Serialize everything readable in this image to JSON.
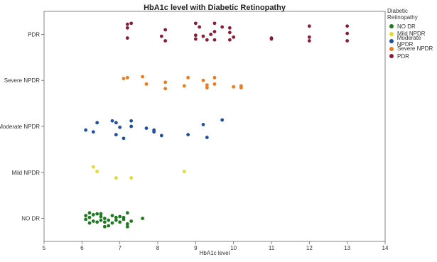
{
  "chart_data": {
    "type": "scatter",
    "title": "HbA1c level with Diabetic Retinopathy",
    "xlabel": "HbA1c level",
    "ylabel": "",
    "xlim": [
      5,
      14
    ],
    "xticks": [
      "5",
      "6",
      "7",
      "8",
      "9",
      "10",
      "11",
      "12",
      "13",
      "14"
    ],
    "categories": [
      "NO DR",
      "Mild NPDR",
      "Moderate NPDR",
      "Severe NPDR",
      "PDR"
    ],
    "legend_title": "Diabetic Retinopathy",
    "legend_position": "right",
    "grid": false,
    "series": [
      {
        "name": "NO DR",
        "color": "#1e7a1e",
        "points": [
          [
            6.1,
            -0.02
          ],
          [
            6.2,
            0.12
          ],
          [
            6.3,
            0.08
          ],
          [
            6.4,
            0.1
          ],
          [
            6.5,
            0.04
          ],
          [
            6.1,
            0.06
          ],
          [
            6.2,
            -0.1
          ],
          [
            6.3,
            -0.06
          ],
          [
            6.5,
            -0.04
          ],
          [
            6.6,
            -0.08
          ],
          [
            6.6,
            0.0
          ],
          [
            6.7,
            -0.16
          ],
          [
            6.8,
            -0.1
          ],
          [
            6.9,
            -0.04
          ],
          [
            7.0,
            -0.08
          ],
          [
            7.1,
            -0.02
          ],
          [
            7.2,
            0.12
          ],
          [
            7.3,
            -0.06
          ],
          [
            7.2,
            -0.18
          ],
          [
            7.2,
            -0.12
          ],
          [
            6.9,
            0.02
          ],
          [
            6.7,
            -0.04
          ],
          [
            6.5,
            0.1
          ],
          [
            6.6,
            -0.18
          ],
          [
            7.0,
            0.04
          ],
          [
            7.6,
            0.0
          ],
          [
            6.2,
            0.02
          ],
          [
            6.4,
            -0.08
          ],
          [
            7.1,
            0.02
          ],
          [
            6.8,
            0.06
          ]
        ]
      },
      {
        "name": "Mild NPDR",
        "color": "#e6d92e",
        "points": [
          [
            6.3,
            1.12
          ],
          [
            6.4,
            1.02
          ],
          [
            6.9,
            0.88
          ],
          [
            7.3,
            0.88
          ],
          [
            8.7,
            1.02
          ]
        ]
      },
      {
        "name": "Moderate NPDR",
        "color": "#1f4fa3",
        "points": [
          [
            6.1,
            1.92
          ],
          [
            6.3,
            1.88
          ],
          [
            6.4,
            2.08
          ],
          [
            6.8,
            2.12
          ],
          [
            6.9,
            2.08
          ],
          [
            6.9,
            1.82
          ],
          [
            7.0,
            1.98
          ],
          [
            7.1,
            1.74
          ],
          [
            7.3,
            2.12
          ],
          [
            7.3,
            2.0
          ],
          [
            7.7,
            1.96
          ],
          [
            7.9,
            1.92
          ],
          [
            7.9,
            1.88
          ],
          [
            8.1,
            1.8
          ],
          [
            8.8,
            1.82
          ],
          [
            9.2,
            2.04
          ],
          [
            9.3,
            1.76
          ],
          [
            9.7,
            2.14
          ]
        ]
      },
      {
        "name": "Severe NPDR",
        "color": "#ef7a1a",
        "points": [
          [
            7.1,
            3.04
          ],
          [
            7.2,
            3.06
          ],
          [
            7.6,
            3.08
          ],
          [
            7.7,
            2.92
          ],
          [
            8.2,
            2.96
          ],
          [
            8.2,
            2.82
          ],
          [
            8.7,
            2.88
          ],
          [
            8.8,
            3.06
          ],
          [
            9.2,
            3.0
          ],
          [
            9.3,
            2.84
          ],
          [
            9.3,
            2.9
          ],
          [
            9.5,
            3.06
          ],
          [
            9.5,
            2.92
          ],
          [
            10.0,
            2.86
          ],
          [
            10.2,
            2.88
          ],
          [
            10.2,
            2.84
          ]
        ]
      },
      {
        "name": "PDR",
        "color": "#8c1c35",
        "points": [
          [
            7.2,
            4.22
          ],
          [
            7.3,
            4.24
          ],
          [
            7.2,
            4.14
          ],
          [
            7.2,
            3.92
          ],
          [
            8.1,
            3.96
          ],
          [
            8.2,
            4.1
          ],
          [
            8.2,
            3.86
          ],
          [
            9.0,
            4.24
          ],
          [
            9.1,
            4.16
          ],
          [
            9.0,
            3.98
          ],
          [
            9.2,
            3.96
          ],
          [
            9.3,
            3.88
          ],
          [
            9.0,
            3.9
          ],
          [
            9.5,
            4.24
          ],
          [
            9.5,
            4.06
          ],
          [
            9.5,
            3.88
          ],
          [
            9.4,
            4.0
          ],
          [
            9.7,
            4.16
          ],
          [
            9.9,
            4.14
          ],
          [
            9.9,
            4.04
          ],
          [
            10.0,
            3.94
          ],
          [
            9.9,
            3.88
          ],
          [
            11.0,
            3.92
          ],
          [
            11.0,
            3.9
          ],
          [
            12.0,
            4.18
          ],
          [
            12.0,
            3.94
          ],
          [
            12.0,
            3.86
          ],
          [
            13.0,
            4.18
          ],
          [
            13.0,
            4.02
          ],
          [
            13.0,
            3.86
          ]
        ]
      }
    ]
  }
}
